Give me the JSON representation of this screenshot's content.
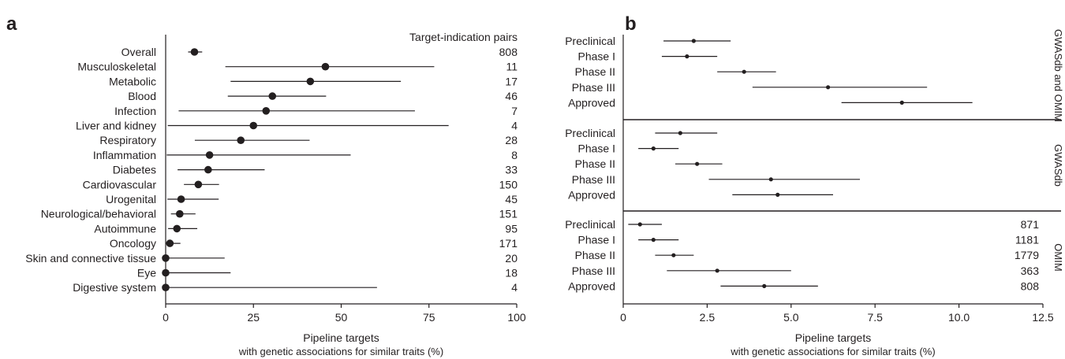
{
  "chart_data": [
    {
      "panel": "a",
      "type": "scatter",
      "error_bars": true,
      "xlabel": "Pipeline targets",
      "xlabel_sub": "with genetic associations for similar traits (%)",
      "xlim": [
        0,
        100
      ],
      "xticks": [
        "0",
        "25",
        "50",
        "75",
        "100"
      ],
      "count_header": "Target-indication pairs",
      "rows": [
        {
          "label": "Overall",
          "value": 8.2,
          "low": 6.4,
          "high": 10.4,
          "count": "808"
        },
        {
          "label": "Musculoskeletal",
          "value": 45.5,
          "low": 17,
          "high": 76.5,
          "count": "11"
        },
        {
          "label": "Metabolic",
          "value": 41.2,
          "low": 18.5,
          "high": 67,
          "count": "17"
        },
        {
          "label": "Blood",
          "value": 30.4,
          "low": 17.7,
          "high": 45.7,
          "count": "46"
        },
        {
          "label": "Infection",
          "value": 28.6,
          "low": 3.7,
          "high": 71,
          "count": "7"
        },
        {
          "label": "Liver and kidney",
          "value": 25,
          "low": 0.6,
          "high": 80.6,
          "count": "4"
        },
        {
          "label": "Respiratory",
          "value": 21.4,
          "low": 8.3,
          "high": 41,
          "count": "28"
        },
        {
          "label": "Inflammation",
          "value": 12.5,
          "low": 0.3,
          "high": 52.7,
          "count": "8"
        },
        {
          "label": "Diabetes",
          "value": 12.1,
          "low": 3.4,
          "high": 28.2,
          "count": "33"
        },
        {
          "label": "Cardiovascular",
          "value": 9.3,
          "low": 5.2,
          "high": 15.2,
          "count": "150"
        },
        {
          "label": "Urogenital",
          "value": 4.4,
          "low": 0.5,
          "high": 15.1,
          "count": "45"
        },
        {
          "label": "Neurological/behavioral",
          "value": 4,
          "low": 1.5,
          "high": 8.5,
          "count": "151"
        },
        {
          "label": "Autoimmune",
          "value": 3.2,
          "low": 0.7,
          "high": 9,
          "count": "95"
        },
        {
          "label": "Oncology",
          "value": 1.2,
          "low": 0.1,
          "high": 4.2,
          "count": "171"
        },
        {
          "label": "Skin and connective tissue",
          "value": 0,
          "low": 0,
          "high": 16.8,
          "count": "20"
        },
        {
          "label": "Eye",
          "value": 0,
          "low": 0,
          "high": 18.5,
          "count": "18"
        },
        {
          "label": "Digestive system",
          "value": 0,
          "low": 0,
          "high": 60.2,
          "count": "4"
        }
      ]
    },
    {
      "panel": "b",
      "type": "scatter",
      "error_bars": true,
      "xlabel": "Pipeline targets",
      "xlabel_sub": "with genetic associations for similar traits (%)",
      "xlim": [
        0,
        12.5
      ],
      "xticks": [
        "0",
        "2.5",
        "5.0",
        "7.5",
        "10.0",
        "12.5"
      ],
      "groups": [
        {
          "label": "GWASdb and OMIM",
          "rows": [
            {
              "label": "Preclinical",
              "value": 2.1,
              "low": 1.2,
              "high": 3.2
            },
            {
              "label": "Phase I",
              "value": 1.9,
              "low": 1.15,
              "high": 2.8
            },
            {
              "label": "Phase II",
              "value": 3.6,
              "low": 2.8,
              "high": 4.55
            },
            {
              "label": "Phase III",
              "value": 6.1,
              "low": 3.85,
              "high": 9.05
            },
            {
              "label": "Approved",
              "value": 8.3,
              "low": 6.5,
              "high": 10.4
            }
          ]
        },
        {
          "label": "GWASdb",
          "rows": [
            {
              "label": "Preclinical",
              "value": 1.7,
              "low": 0.95,
              "high": 2.8
            },
            {
              "label": "Phase I",
              "value": 0.9,
              "low": 0.45,
              "high": 1.65
            },
            {
              "label": "Phase II",
              "value": 2.2,
              "low": 1.55,
              "high": 2.95
            },
            {
              "label": "Phase III",
              "value": 4.4,
              "low": 2.55,
              "high": 7.05
            },
            {
              "label": "Approved",
              "value": 4.6,
              "low": 3.25,
              "high": 6.25
            }
          ]
        },
        {
          "label": "OMIM",
          "rows": [
            {
              "label": "Preclinical",
              "value": 0.5,
              "low": 0.15,
              "high": 1.15,
              "count": "871"
            },
            {
              "label": "Phase I",
              "value": 0.9,
              "low": 0.45,
              "high": 1.65,
              "count": "1181"
            },
            {
              "label": "Phase II",
              "value": 1.5,
              "low": 0.95,
              "high": 2.1,
              "count": "1779"
            },
            {
              "label": "Phase III",
              "value": 2.8,
              "low": 1.3,
              "high": 5.0,
              "count": "363"
            },
            {
              "label": "Approved",
              "value": 4.2,
              "low": 2.9,
              "high": 5.8,
              "count": "808"
            }
          ]
        }
      ]
    }
  ]
}
